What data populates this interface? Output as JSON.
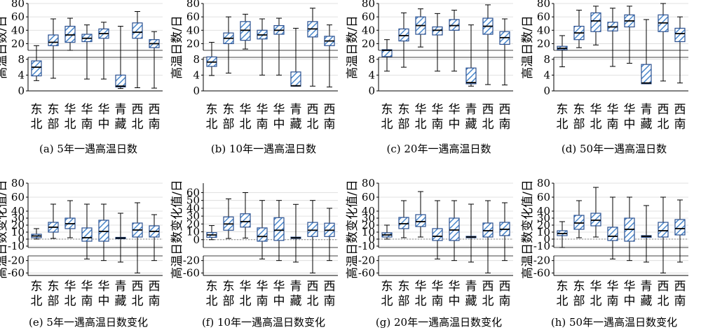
{
  "colors": {
    "box_edge": "#2a4f8f",
    "hatch": "#4a88cc",
    "grid": "#d8d8d8",
    "zero_line": "#888888",
    "whisker": "#000000"
  },
  "categories": [
    "东北",
    "东部",
    "华北",
    "华南",
    "华中",
    "青藏",
    "西北",
    "西南"
  ],
  "chart_data": [
    {
      "type": "box",
      "caption": "(a) 5年一遇高温日数",
      "ylabel": "高温日数/日",
      "y_upper": {
        "ylim": [
          10,
          80
        ],
        "ticks": [
          "20",
          "40",
          "60",
          "80"
        ]
      },
      "y_lower": {
        "ylim": [
          0,
          8.5
        ],
        "ticks": [
          "0",
          "4",
          "8"
        ]
      },
      "boxes": [
        {
          "q1": 3.8,
          "median": 6.0,
          "q3": 7.6,
          "whislo": 2.6,
          "whishi": 17
        },
        {
          "q1": 17,
          "median": 22,
          "q3": 33,
          "whislo": 3.2,
          "whishi": 57
        },
        {
          "q1": 22,
          "median": 33,
          "q3": 46,
          "whislo": 10,
          "whishi": 58
        },
        {
          "q1": 23,
          "median": 28,
          "q3": 34,
          "whislo": 3,
          "whishi": 48
        },
        {
          "q1": 28,
          "median": 35,
          "q3": 42,
          "whislo": 3,
          "whishi": 52
        },
        {
          "q1": 1,
          "median": 1.2,
          "q3": 4.0,
          "whislo": 0.6,
          "whishi": 46
        },
        {
          "q1": 28,
          "median": 37,
          "q3": 51,
          "whislo": 0.8,
          "whishi": 68
        },
        {
          "q1": 14,
          "median": 20,
          "q3": 26,
          "whislo": 0.7,
          "whishi": 38
        }
      ]
    },
    {
      "type": "box",
      "caption": "(b) 10年一遇高温日数",
      "ylabel": "高温日数/日",
      "y_upper": {
        "ylim": [
          10,
          80
        ],
        "ticks": [
          "20",
          "40",
          "60",
          "80"
        ]
      },
      "y_lower": {
        "ylim": [
          0,
          8.5
        ],
        "ticks": [
          "0",
          "4",
          "8"
        ]
      },
      "boxes": [
        {
          "q1": 6.2,
          "median": 7.3,
          "q3": 8.6,
          "whislo": 3.9,
          "whishi": 22
        },
        {
          "q1": 20,
          "median": 28,
          "q3": 36,
          "whislo": 4.5,
          "whishi": 60
        },
        {
          "q1": 25,
          "median": 40,
          "q3": 53,
          "whislo": 12,
          "whishi": 64
        },
        {
          "q1": 27,
          "median": 33,
          "q3": 40,
          "whislo": 4,
          "whishi": 57
        },
        {
          "q1": 34,
          "median": 40,
          "q3": 47,
          "whislo": 4,
          "whishi": 58
        },
        {
          "q1": 1.2,
          "median": 1.3,
          "q3": 4.8,
          "whislo": 1.2,
          "whishi": 43
        },
        {
          "q1": 30,
          "median": 42,
          "q3": 53,
          "whislo": 1.2,
          "whishi": 73
        },
        {
          "q1": 17,
          "median": 24,
          "q3": 31,
          "whislo": 1,
          "whishi": 48
        }
      ]
    },
    {
      "type": "box",
      "caption": "(c) 20年一遇高温日数",
      "ylabel": "高温日数/日",
      "y_upper": {
        "ylim": [
          10,
          80
        ],
        "ticks": [
          "20",
          "40",
          "60",
          "80"
        ]
      },
      "y_lower": {
        "ylim": [
          0,
          8.5
        ],
        "ticks": [
          "0",
          "4",
          "8"
        ]
      },
      "boxes": [
        {
          "q1": 8.7,
          "median": 10,
          "q3": 11,
          "whislo": 5,
          "whishi": 26
        },
        {
          "q1": 24,
          "median": 32,
          "q3": 42,
          "whislo": 6,
          "whishi": 66
        },
        {
          "q1": 34,
          "median": 47,
          "q3": 60,
          "whislo": 15,
          "whishi": 72
        },
        {
          "q1": 33,
          "median": 40,
          "q3": 45,
          "whislo": 5,
          "whishi": 65
        },
        {
          "q1": 40,
          "median": 47,
          "q3": 56,
          "whislo": 5,
          "whishi": 70
        },
        {
          "q1": 1.8,
          "median": 2.1,
          "q3": 5.8,
          "whislo": 1.2,
          "whishi": 48
        },
        {
          "q1": 34,
          "median": 46,
          "q3": 58,
          "whislo": 1.6,
          "whishi": 78
        },
        {
          "q1": 19,
          "median": 29,
          "q3": 38,
          "whislo": 1.5,
          "whishi": 57
        }
      ]
    },
    {
      "type": "box",
      "caption": "(d) 50年一遇高温日数",
      "ylabel": "高温日数/日",
      "y_upper": {
        "ylim": [
          10,
          80
        ],
        "ticks": [
          "20",
          "40",
          "60",
          "80"
        ]
      },
      "y_lower": {
        "ylim": [
          0,
          8.5
        ],
        "ticks": [
          "0",
          "4",
          "8"
        ]
      },
      "boxes": [
        {
          "q1": 11,
          "median": 13,
          "q3": 16,
          "whislo": 6.1,
          "whishi": 32
        },
        {
          "q1": 26,
          "median": 36,
          "q3": 46,
          "whislo": 14,
          "whishi": 70
        },
        {
          "q1": 38,
          "median": 54,
          "q3": 66,
          "whislo": 18,
          "whishi": 76
        },
        {
          "q1": 39,
          "median": 45,
          "q3": 52,
          "whislo": 6.2,
          "whishi": 73
        },
        {
          "q1": 45,
          "median": 54,
          "q3": 63,
          "whislo": 7,
          "whishi": 76
        },
        {
          "q1": 1.8,
          "median": 2.0,
          "q3": 6.7,
          "whislo": 1.8,
          "whishi": 56
        },
        {
          "q1": 38,
          "median": 51,
          "q3": 63,
          "whislo": 2.5,
          "whishi": 82
        },
        {
          "q1": 23,
          "median": 35,
          "q3": 43,
          "whislo": 2,
          "whishi": 60
        }
      ]
    },
    {
      "type": "box",
      "caption": "(e) 5年一遇高温日数变化",
      "ylabel": "高温日数变化值/日",
      "y_upper": {
        "ylim": [
          -12,
          80
        ],
        "ticks": [
          "-10",
          "0",
          "10",
          "20",
          "30",
          "40",
          "60",
          "80"
        ]
      },
      "y_lower": {
        "ylim": [
          -68,
          -5
        ],
        "ticks": [
          "-20",
          "-60"
        ]
      },
      "boxes": [
        {
          "q1": 2,
          "median": 4.5,
          "q3": 7,
          "whislo": 0,
          "whishi": 15
        },
        {
          "q1": 10,
          "median": 17,
          "q3": 24,
          "whislo": 1,
          "whishi": 50
        },
        {
          "q1": 15,
          "median": 22,
          "q3": 30,
          "whislo": 2,
          "whishi": 55
        },
        {
          "q1": -3,
          "median": 2,
          "q3": 16,
          "whislo": -15,
          "whishi": 50
        },
        {
          "q1": -3,
          "median": 11,
          "q3": 27,
          "whislo": -20,
          "whishi": 50
        },
        {
          "q1": 0.5,
          "median": 1.5,
          "q3": 2.5,
          "whislo": -25,
          "whishi": 37
        },
        {
          "q1": 3,
          "median": 13,
          "q3": 23,
          "whislo": -60,
          "whishi": 52
        },
        {
          "q1": 3,
          "median": 11,
          "q3": 19,
          "whislo": -20,
          "whishi": 35
        }
      ]
    },
    {
      "type": "box",
      "caption": "(f) 10年一遇高温日数变化",
      "ylabel": "高温日数变化值/日",
      "y_upper": {
        "ylim": [
          -10,
          72
        ],
        "ticks": [
          "0",
          "10",
          "20",
          "30",
          "40",
          "50",
          "60"
        ]
      },
      "y_lower": {
        "ylim": [
          -68,
          -5
        ],
        "ticks": [
          "-20",
          "-60"
        ]
      },
      "boxes": [
        {
          "q1": 3,
          "median": 6,
          "q3": 9,
          "whislo": 0,
          "whishi": 18
        },
        {
          "q1": 12,
          "median": 20,
          "q3": 29,
          "whislo": 1.5,
          "whishi": 52
        },
        {
          "q1": 16,
          "median": 23,
          "q3": 33,
          "whislo": 2,
          "whishi": 60
        },
        {
          "q1": -2,
          "median": 4,
          "q3": 15,
          "whislo": -15,
          "whishi": 50
        },
        {
          "q1": -1,
          "median": 12,
          "q3": 28,
          "whislo": -20,
          "whishi": 50
        },
        {
          "q1": 1.5,
          "median": 2.3,
          "q3": 3.2,
          "whislo": -25,
          "whishi": 45
        },
        {
          "q1": 4,
          "median": 12,
          "q3": 22,
          "whislo": -60,
          "whishi": 50
        },
        {
          "q1": 4,
          "median": 12,
          "q3": 21,
          "whislo": -20,
          "whishi": 40
        }
      ]
    },
    {
      "type": "box",
      "caption": "(g) 20年一遇高温日数变化",
      "ylabel": "高温日数变化值/日",
      "y_upper": {
        "ylim": [
          -12,
          80
        ],
        "ticks": [
          "-10",
          "0",
          "10",
          "20",
          "30",
          "40",
          "60",
          "80"
        ]
      },
      "y_lower": {
        "ylim": [
          -68,
          -5
        ],
        "ticks": [
          "-20",
          "-60"
        ]
      },
      "boxes": [
        {
          "q1": 3,
          "median": 6,
          "q3": 9,
          "whislo": 0,
          "whishi": 20
        },
        {
          "q1": 15,
          "median": 22,
          "q3": 31,
          "whislo": 2,
          "whishi": 55
        },
        {
          "q1": 18,
          "median": 25,
          "q3": 35,
          "whislo": 3,
          "whishi": 68
        },
        {
          "q1": -2,
          "median": 4,
          "q3": 15,
          "whislo": -15,
          "whishi": 55
        },
        {
          "q1": -2,
          "median": 13,
          "q3": 30,
          "whislo": -20,
          "whishi": 55
        },
        {
          "q1": 2,
          "median": 3,
          "q3": 4,
          "whislo": -25,
          "whishi": 50
        },
        {
          "q1": 3,
          "median": 12,
          "q3": 23,
          "whislo": -60,
          "whishi": 55
        },
        {
          "q1": 5,
          "median": 14,
          "q3": 24,
          "whislo": -20,
          "whishi": 52
        }
      ]
    },
    {
      "type": "box",
      "caption": "(h) 50年一遇高温日数变化",
      "ylabel": "高温日数变化值/日",
      "y_upper": {
        "ylim": [
          -12,
          80
        ],
        "ticks": [
          "-10",
          "0",
          "10",
          "20",
          "30",
          "40",
          "60",
          "80"
        ]
      },
      "y_lower": {
        "ylim": [
          -68,
          -5
        ],
        "ticks": [
          "-20",
          "-60"
        ]
      },
      "boxes": [
        {
          "q1": 5,
          "median": 8,
          "q3": 12,
          "whislo": -12,
          "whishi": 25
        },
        {
          "q1": 14,
          "median": 23,
          "q3": 34,
          "whislo": 2,
          "whishi": 55
        },
        {
          "q1": 19,
          "median": 27,
          "q3": 37,
          "whislo": 3,
          "whishi": 74
        },
        {
          "q1": -2,
          "median": 4,
          "q3": 17,
          "whislo": -15,
          "whishi": 60
        },
        {
          "q1": -3,
          "median": 14,
          "q3": 30,
          "whislo": -20,
          "whishi": 60
        },
        {
          "q1": 2.5,
          "median": 4,
          "q3": 5,
          "whislo": -25,
          "whishi": 48
        },
        {
          "q1": 3,
          "median": 12,
          "q3": 24,
          "whislo": -60,
          "whishi": 60
        },
        {
          "q1": 6,
          "median": 15,
          "q3": 28,
          "whislo": -25,
          "whishi": 56
        }
      ]
    }
  ]
}
